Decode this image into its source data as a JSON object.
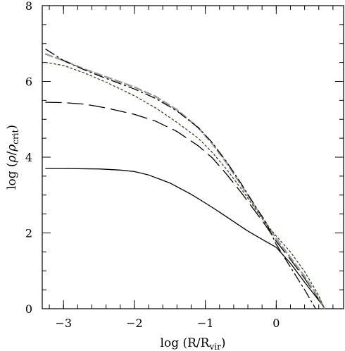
{
  "chart_data": {
    "type": "line",
    "xlim": [
      -3.3,
      0.95
    ],
    "ylim": [
      0,
      8
    ],
    "x_ticks": [
      "-3",
      "-2",
      "-1",
      "0"
    ],
    "y_ticks": [
      "0",
      "2",
      "4",
      "6",
      "8"
    ],
    "xlabel": {
      "prefix": "log  (R/R",
      "subscript": "vir",
      "suffix": ")"
    },
    "ylabel": {
      "prefix": "log  (",
      "rho": "ρ",
      "slash": "/",
      "rho2": "ρ",
      "subscript": "crit",
      "suffix": ")"
    },
    "grid": false,
    "legend": "none",
    "series": [
      {
        "style": "solid",
        "color": "#000000",
        "points": [
          [
            -3.25,
            3.7
          ],
          [
            -3.0,
            3.7
          ],
          [
            -2.5,
            3.69
          ],
          [
            -2.2,
            3.66
          ],
          [
            -2.0,
            3.62
          ],
          [
            -1.8,
            3.53
          ],
          [
            -1.5,
            3.32
          ],
          [
            -1.2,
            3.02
          ],
          [
            -1.0,
            2.79
          ],
          [
            -0.8,
            2.55
          ],
          [
            -0.6,
            2.3
          ],
          [
            -0.4,
            2.05
          ],
          [
            -0.2,
            1.83
          ],
          [
            0.0,
            1.62
          ],
          [
            0.2,
            1.2
          ],
          [
            0.4,
            0.7
          ],
          [
            0.6,
            0.22
          ],
          [
            0.68,
            0.02
          ]
        ]
      },
      {
        "style": "long-dash",
        "color": "#000000",
        "points": [
          [
            -3.25,
            5.45
          ],
          [
            -3.0,
            5.44
          ],
          [
            -2.7,
            5.4
          ],
          [
            -2.4,
            5.3
          ],
          [
            -2.0,
            5.13
          ],
          [
            -1.7,
            4.95
          ],
          [
            -1.4,
            4.68
          ],
          [
            -1.1,
            4.3
          ],
          [
            -0.9,
            3.98
          ],
          [
            -0.7,
            3.55
          ],
          [
            -0.5,
            3.08
          ],
          [
            -0.3,
            2.58
          ],
          [
            -0.15,
            2.2
          ],
          [
            0.0,
            1.78
          ],
          [
            0.2,
            1.3
          ],
          [
            0.4,
            0.8
          ],
          [
            0.6,
            0.25
          ],
          [
            0.68,
            0.02
          ]
        ]
      },
      {
        "style": "short-dash",
        "color": "#999999",
        "points": [
          [
            -3.25,
            6.72
          ],
          [
            -3.0,
            6.55
          ],
          [
            -2.7,
            6.32
          ],
          [
            -2.4,
            6.12
          ],
          [
            -2.0,
            5.85
          ],
          [
            -1.7,
            5.6
          ],
          [
            -1.4,
            5.25
          ],
          [
            -1.1,
            4.78
          ],
          [
            -0.9,
            4.35
          ],
          [
            -0.7,
            3.85
          ],
          [
            -0.5,
            3.28
          ],
          [
            -0.3,
            2.7
          ],
          [
            -0.15,
            2.28
          ],
          [
            0.0,
            1.85
          ],
          [
            0.2,
            1.35
          ],
          [
            0.4,
            0.85
          ],
          [
            0.6,
            0.28
          ],
          [
            0.68,
            0.02
          ]
        ]
      },
      {
        "style": "dotted",
        "color": "#2e4a1e",
        "points": [
          [
            -3.25,
            6.5
          ],
          [
            -3.0,
            6.42
          ],
          [
            -2.7,
            6.22
          ],
          [
            -2.4,
            5.98
          ],
          [
            -2.0,
            5.62
          ],
          [
            -1.7,
            5.3
          ],
          [
            -1.4,
            4.92
          ],
          [
            -1.1,
            4.5
          ],
          [
            -0.9,
            4.12
          ],
          [
            -0.7,
            3.68
          ],
          [
            -0.5,
            3.18
          ],
          [
            -0.3,
            2.65
          ],
          [
            -0.15,
            2.25
          ],
          [
            0.0,
            1.92
          ],
          [
            0.2,
            1.5
          ],
          [
            0.4,
            0.98
          ],
          [
            0.6,
            0.35
          ],
          [
            0.67,
            0.02
          ]
        ]
      },
      {
        "style": "dash-dot",
        "color": "#000000",
        "points": [
          [
            -3.25,
            6.85
          ],
          [
            -3.0,
            6.55
          ],
          [
            -2.7,
            6.3
          ],
          [
            -2.4,
            6.08
          ],
          [
            -2.0,
            5.8
          ],
          [
            -1.7,
            5.55
          ],
          [
            -1.4,
            5.22
          ],
          [
            -1.1,
            4.78
          ],
          [
            -0.9,
            4.38
          ],
          [
            -0.7,
            3.88
          ],
          [
            -0.5,
            3.32
          ],
          [
            -0.3,
            2.72
          ],
          [
            -0.15,
            2.3
          ],
          [
            0.0,
            1.7
          ],
          [
            0.2,
            1.1
          ],
          [
            0.4,
            0.5
          ],
          [
            0.55,
            0.02
          ]
        ]
      }
    ]
  }
}
